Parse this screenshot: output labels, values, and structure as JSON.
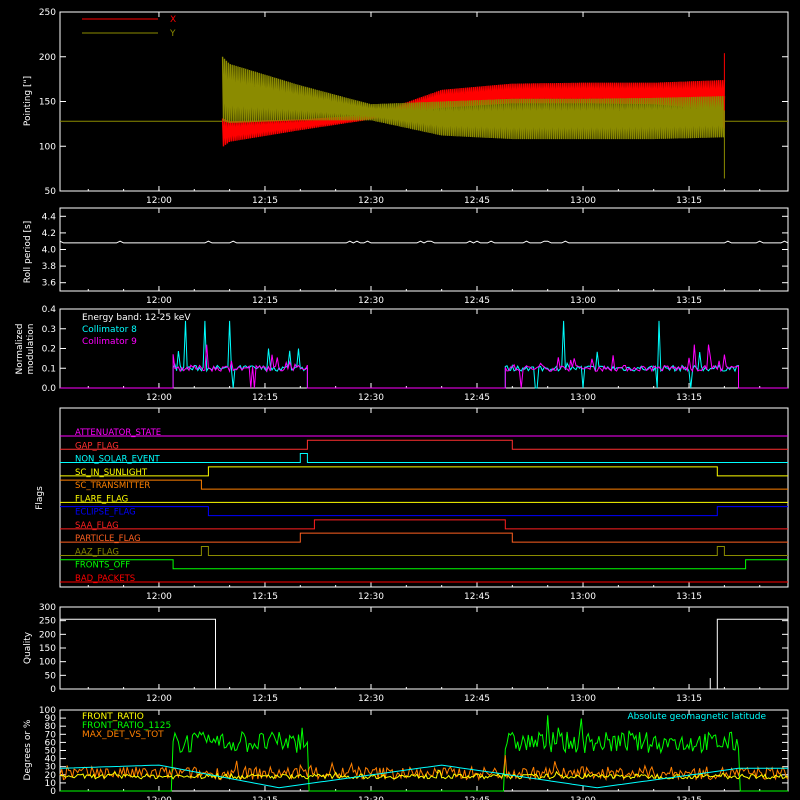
{
  "colors": {
    "background": "#000000",
    "axes": "#ffffff",
    "pointing_x": "#ff0000",
    "pointing_y": "#8b8b00",
    "collimator8": "#00ffff",
    "collimator9": "#ff00ff",
    "front_ratio": "#ffff00",
    "front_ratio_1125": "#00ff00",
    "max_det_vs_tot": "#ff8000",
    "geomagnetic": "#00ffff"
  },
  "chart_data": [
    {
      "id": "pointing",
      "type": "line",
      "ylabel": "Pointing [\"]",
      "xlim": [
        "11:46",
        "13:29"
      ],
      "ylim": [
        50,
        250
      ],
      "yticks": [
        50,
        100,
        150,
        200,
        250
      ],
      "xticks": [
        "12:00",
        "12:15",
        "12:30",
        "12:45",
        "13:00",
        "13:15"
      ],
      "legend": "top-left",
      "series": [
        {
          "name": "X",
          "color": "#ff0000",
          "baseline": 128,
          "envelope": {
            "t": [
              "12:09",
              "12:10",
              "12:20",
              "12:30",
              "12:40",
              "12:50",
              "13:00",
              "13:10",
              "13:20"
            ],
            "low": [
              99,
              105,
              118,
              130,
              143,
              148,
              148,
              147,
              140
            ],
            "high": [
              131,
              128,
              130,
              135,
              163,
              170,
              171,
              171,
              174
            ]
          }
        },
        {
          "name": "Y",
          "color": "#8b8b00",
          "baseline": 128,
          "envelope": {
            "t": [
              "12:09",
              "12:10",
              "12:20",
              "12:30",
              "12:40",
              "12:50",
              "13:00",
              "13:10",
              "13:20"
            ],
            "low": [
              128,
              126,
              129,
              129,
              112,
              108,
              108,
              108,
              110
            ],
            "high": [
              200,
              192,
              168,
              147,
              150,
              153,
              153,
              154,
              156
            ]
          }
        }
      ]
    },
    {
      "id": "roll",
      "type": "line",
      "ylabel": "Roll period [s]",
      "xlim": [
        "11:46",
        "13:29"
      ],
      "ylim": [
        3.5,
        4.5
      ],
      "yticks": [
        3.6,
        3.8,
        4.0,
        4.2,
        4.4
      ],
      "xticks": [
        "12:00",
        "12:15",
        "12:30",
        "12:45",
        "13:00",
        "13:15"
      ],
      "series": [
        {
          "name": "",
          "color": "#ffffff",
          "value": 4.08
        }
      ]
    },
    {
      "id": "modulation",
      "type": "line",
      "ylabel": [
        "Normalized",
        "modulation"
      ],
      "xlim": [
        "11:46",
        "13:29"
      ],
      "ylim": [
        0,
        0.4
      ],
      "yticks": [
        0.0,
        0.1,
        0.2,
        0.3,
        0.4
      ],
      "xticks": [
        "12:00",
        "12:15",
        "12:30",
        "12:45",
        "13:00",
        "13:15"
      ],
      "legend": "top-left",
      "legend_title": "Energy band: 12-25 keV",
      "active_intervals": [
        [
          "12:02",
          "12:21"
        ],
        [
          "12:49",
          "13:22"
        ]
      ],
      "series": [
        {
          "name": "Collimator 8",
          "color": "#00ffff",
          "typical": 0.1,
          "max": 0.34
        },
        {
          "name": "Collimator 9",
          "color": "#ff00ff",
          "typical": 0.1,
          "max": 0.22
        }
      ]
    },
    {
      "id": "flags",
      "type": "line",
      "ylabel": "Flags",
      "xlim": [
        "11:46",
        "13:29"
      ],
      "xticks": [
        "12:00",
        "12:15",
        "12:30",
        "12:45",
        "13:00",
        "13:15"
      ],
      "series": [
        {
          "name": "ATTENUATOR_STATE",
          "color": "#ff00ff",
          "high": []
        },
        {
          "name": "GAP_FLAG",
          "color": "#ff3030",
          "high": [
            [
              "12:21",
              "12:50"
            ]
          ]
        },
        {
          "name": "NON_SOLAR_EVENT",
          "color": "#00ffff",
          "high": [
            [
              "12:20",
              "12:21"
            ]
          ]
        },
        {
          "name": "SC_IN_SUNLIGHT",
          "color": "#ffff00",
          "high": [
            [
              "12:07",
              "13:19"
            ]
          ]
        },
        {
          "name": "SC_TRANSMITTER",
          "color": "#ff8000",
          "high": [
            [
              "11:46",
              "12:06"
            ]
          ]
        },
        {
          "name": "FLARE_FLAG",
          "color": "#ffff00",
          "high": []
        },
        {
          "name": "ECLIPSE_FLAG",
          "color": "#0000ff",
          "high": [
            [
              "11:46",
              "12:07"
            ],
            [
              "13:19",
              "13:29"
            ]
          ]
        },
        {
          "name": "SAA_FLAG",
          "color": "#ff2020",
          "high": [
            [
              "12:22",
              "12:49"
            ]
          ]
        },
        {
          "name": "PARTICLE_FLAG",
          "color": "#ff6020",
          "high": [
            [
              "12:20",
              "12:50"
            ]
          ]
        },
        {
          "name": "AAZ_FLAG",
          "color": "#8b8b00",
          "high": [
            [
              "12:06",
              "12:07"
            ],
            [
              "13:19",
              "13:20"
            ]
          ]
        },
        {
          "name": "FRONTS_OFF",
          "color": "#00ff00",
          "high": [
            [
              "11:46",
              "12:02"
            ],
            [
              "13:23",
              "13:29"
            ]
          ]
        },
        {
          "name": "BAD_PACKETS",
          "color": "#ff0000",
          "high": []
        }
      ]
    },
    {
      "id": "quality",
      "type": "line",
      "ylabel": "Quality",
      "xlim": [
        "11:46",
        "13:29"
      ],
      "ylim": [
        0,
        300
      ],
      "yticks": [
        0,
        50,
        100,
        150,
        200,
        250,
        300
      ],
      "xticks": [
        "12:00",
        "12:15",
        "12:30",
        "12:45",
        "13:00",
        "13:15"
      ],
      "series": [
        {
          "name": "",
          "color": "#ffffff",
          "t": [
            "11:46",
            "12:08",
            "12:08",
            "13:19",
            "13:19",
            "13:29"
          ],
          "values": [
            255,
            255,
            0,
            0,
            255,
            255
          ]
        }
      ]
    },
    {
      "id": "ratios",
      "type": "line",
      "ylabel": "Degrees or %",
      "xlim": [
        "11:46",
        "13:29"
      ],
      "ylim": [
        0,
        100
      ],
      "yticks": [
        0,
        10,
        20,
        30,
        40,
        50,
        60,
        70,
        80,
        90,
        100
      ],
      "xticks": [
        "12:00",
        "12:15",
        "12:30",
        "12:45",
        "13:00",
        "13:15"
      ],
      "legend": "top-left",
      "annotation": "Absolute geomagnetic latitude",
      "series": [
        {
          "name": "FRONT_RATIO",
          "color": "#ffff00",
          "typical": 18
        },
        {
          "name": "FRONT_RATIO_1125",
          "color": "#00ff00",
          "typical": 60,
          "active": [
            [
              "12:02",
              "12:21"
            ],
            [
              "12:49",
              "13:22"
            ]
          ]
        },
        {
          "name": "MAX_DET_VS_TOT",
          "color": "#ff8000",
          "typical": 22
        },
        {
          "name": "Absolute geomagnetic latitude",
          "color": "#00ffff",
          "t": [
            "11:46",
            "12:00",
            "12:17",
            "12:40",
            "13:02",
            "13:22",
            "13:29"
          ],
          "values": [
            28,
            32,
            4,
            32,
            4,
            28,
            28
          ]
        }
      ]
    }
  ]
}
